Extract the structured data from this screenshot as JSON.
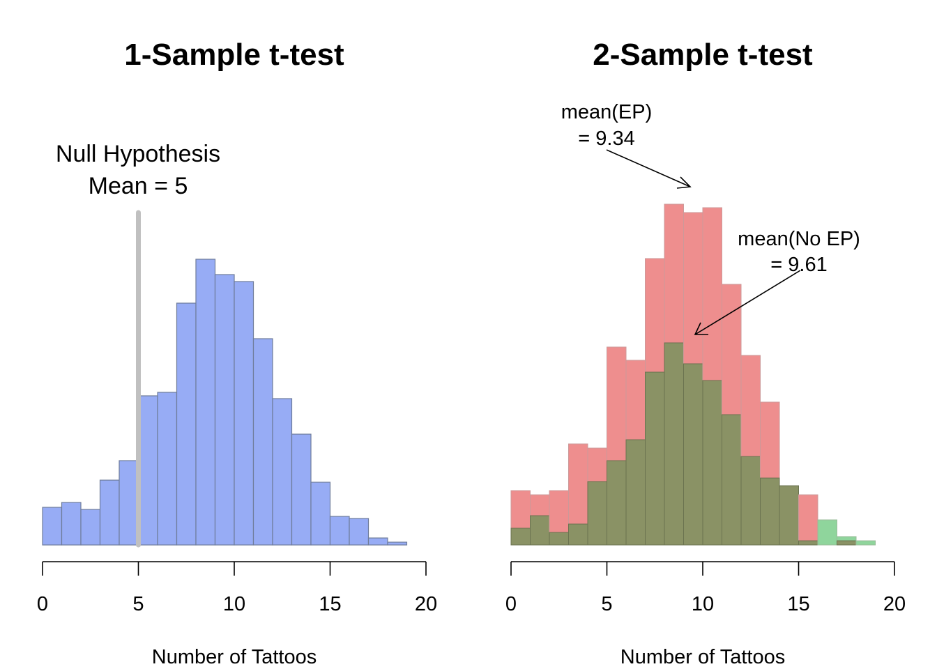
{
  "chart_data": [
    {
      "type": "bar",
      "title": "1-Sample t-test",
      "xlabel": "Number of Tattoos",
      "ylabel": "",
      "xlim": [
        0,
        20
      ],
      "xticks": [
        "0",
        "5",
        "10",
        "15",
        "20"
      ],
      "bin_width": 1,
      "bin_start": 0,
      "series": [
        {
          "values": [
            54,
            61,
            51,
            93,
            121,
            214,
            219,
            347,
            410,
            388,
            378,
            296,
            210,
            159,
            90,
            41,
            38,
            10,
            4
          ],
          "color": "#97acf5"
        }
      ],
      "reference_line": {
        "x": 5,
        "color": "#c0c0c0"
      },
      "annotations": [
        {
          "line1": "Null Hypothesis",
          "line2": "Mean = 5"
        }
      ],
      "grid": false
    },
    {
      "type": "bar",
      "title": "2-Sample t-test",
      "xlabel": "Number of Tattoos",
      "ylabel": "",
      "xlim": [
        0,
        20
      ],
      "xticks": [
        "0",
        "5",
        "10",
        "15",
        "20"
      ],
      "bin_width": 1,
      "bin_start": 0,
      "series": [
        {
          "values": [
            78,
            72,
            78,
            145,
            139,
            284,
            265,
            411,
            489,
            477,
            484,
            374,
            272,
            205,
            85,
            72,
            0,
            6,
            0
          ],
          "color": "#ee8e8e"
        },
        {
          "values": [
            24,
            42,
            18,
            30,
            91,
            121,
            151,
            248,
            290,
            260,
            236,
            187,
            127,
            96,
            85,
            6,
            36,
            12,
            6
          ],
          "color": "#8fd59c"
        }
      ],
      "overlap_color": "#8a9265",
      "annotations": [
        {
          "line1": "mean(EP)",
          "line2": "= 9.34",
          "points_to": 9.34
        },
        {
          "line1": "mean(No EP)",
          "line2": "= 9.61",
          "points_to": 9.61
        }
      ],
      "grid": false
    }
  ]
}
